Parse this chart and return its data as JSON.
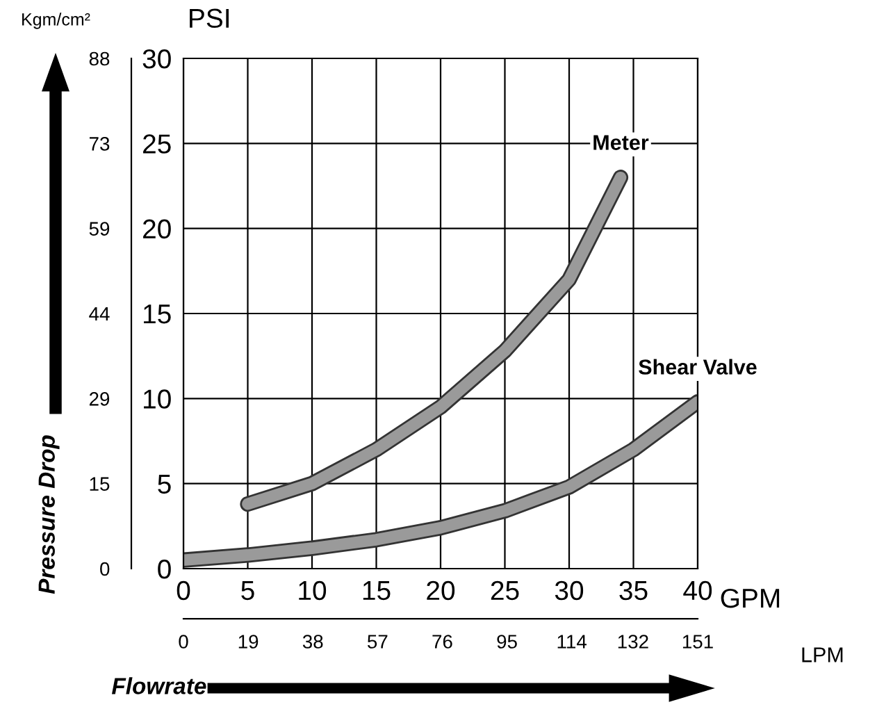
{
  "chart_data": {
    "type": "line",
    "xlabel": "Flowrate",
    "ylabel": "PSI",
    "x2label": "LPM",
    "annotations": [
      "Kgm/cm²",
      "GPM",
      "Pressure Drop"
    ],
    "series": [
      {
        "name": "Meter",
        "color": "#9a9a9a",
        "x": [
          5,
          10,
          15,
          20,
          25,
          30,
          34
        ],
        "values": [
          3.8,
          5,
          7,
          9.5,
          12.8,
          17,
          23
        ]
      },
      {
        "name": "Shear Valve",
        "color": "#9a9a9a",
        "x": [
          0,
          5,
          10,
          15,
          20,
          25,
          30,
          35,
          40
        ],
        "values": [
          0.5,
          0.8,
          1.2,
          1.7,
          2.4,
          3.4,
          4.8,
          7,
          9.8
        ]
      }
    ],
    "xlim": [
      0,
      40
    ],
    "xticks": [
      0,
      5,
      10,
      15,
      20,
      25,
      30,
      35,
      40
    ],
    "ylim": [
      0,
      30
    ],
    "yticks": [
      0,
      5,
      10,
      15,
      20,
      25,
      30
    ],
    "y2lim": [
      0,
      88
    ],
    "y2ticks": [
      0,
      {
        "value": 14.67,
        "label": "15"
      },
      {
        "value": 29.33,
        "label": "29"
      },
      44,
      {
        "value": 58.67,
        "label": "59"
      },
      {
        "value": 73.33,
        "label": "73"
      },
      88
    ],
    "x2lim": [
      0,
      151
    ],
    "x2ticks": [
      0,
      19,
      38,
      57,
      76,
      95,
      114,
      132,
      151
    ],
    "grid": true,
    "marker": "none",
    "line_style": "solid"
  }
}
